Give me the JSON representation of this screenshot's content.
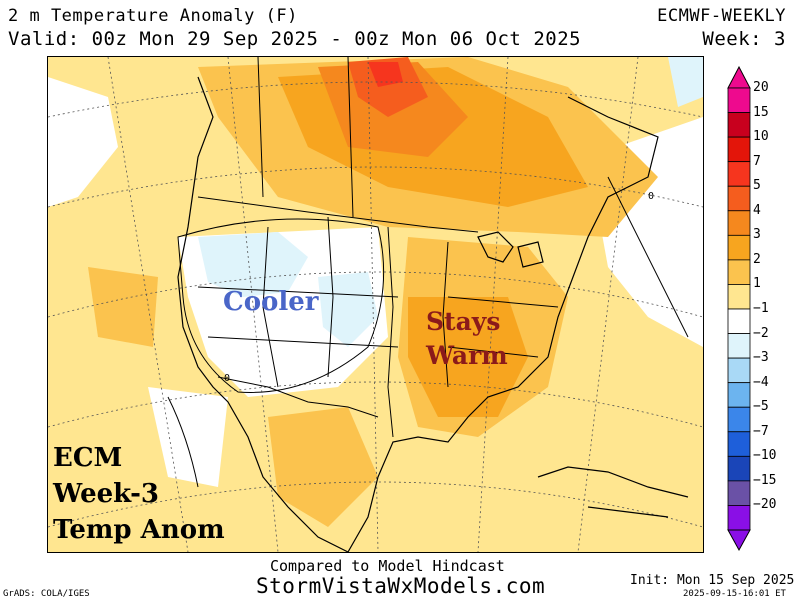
{
  "header": {
    "title": "2 m Temperature Anomaly (F)",
    "valid": "Valid: 00z Mon 29 Sep 2025 - 00z Mon 06 Oct 2025",
    "model": "ECMWF-WEEKLY",
    "week": "Week: 3"
  },
  "annotations": {
    "cooler": "Cooler",
    "stays": "Stays",
    "warm": "Warm",
    "ecm_line1": "ECM",
    "ecm_line2": "Week-3",
    "ecm_line3": "Temp Anom"
  },
  "contour_label": "0",
  "legend": {
    "levels": [
      {
        "label": "20",
        "color": "#ee0a8e"
      },
      {
        "label": "15",
        "color": "#c8001e"
      },
      {
        "label": "10",
        "color": "#e3150a"
      },
      {
        "label": "7",
        "color": "#f6351e"
      },
      {
        "label": "5",
        "color": "#f55d1e"
      },
      {
        "label": "4",
        "color": "#f5881e"
      },
      {
        "label": "3",
        "color": "#f7a51f"
      },
      {
        "label": "2",
        "color": "#fbc34e"
      },
      {
        "label": "1",
        "color": "#ffe690"
      },
      {
        "label": "−1",
        "color": "#ffffff"
      },
      {
        "label": "−2",
        "color": "#dff4fb"
      },
      {
        "label": "−3",
        "color": "#a9d9f6"
      },
      {
        "label": "−4",
        "color": "#6cb4ef"
      },
      {
        "label": "−5",
        "color": "#3b86ea"
      },
      {
        "label": "−7",
        "color": "#1e5fda"
      },
      {
        "label": "−10",
        "color": "#1a45b8"
      },
      {
        "label": "−15",
        "color": "#6a51a6"
      },
      {
        "label": "−20",
        "color": "#8a0fe6"
      }
    ]
  },
  "footer": {
    "compared": "Compared to Model Hindcast",
    "website": "StormVistaWxModels.com",
    "init": "Init: Mon 15 Sep 2025",
    "timestamp": "2025-09-15-16:01 ET",
    "grads": "GrADS: COLA/IGES"
  }
}
